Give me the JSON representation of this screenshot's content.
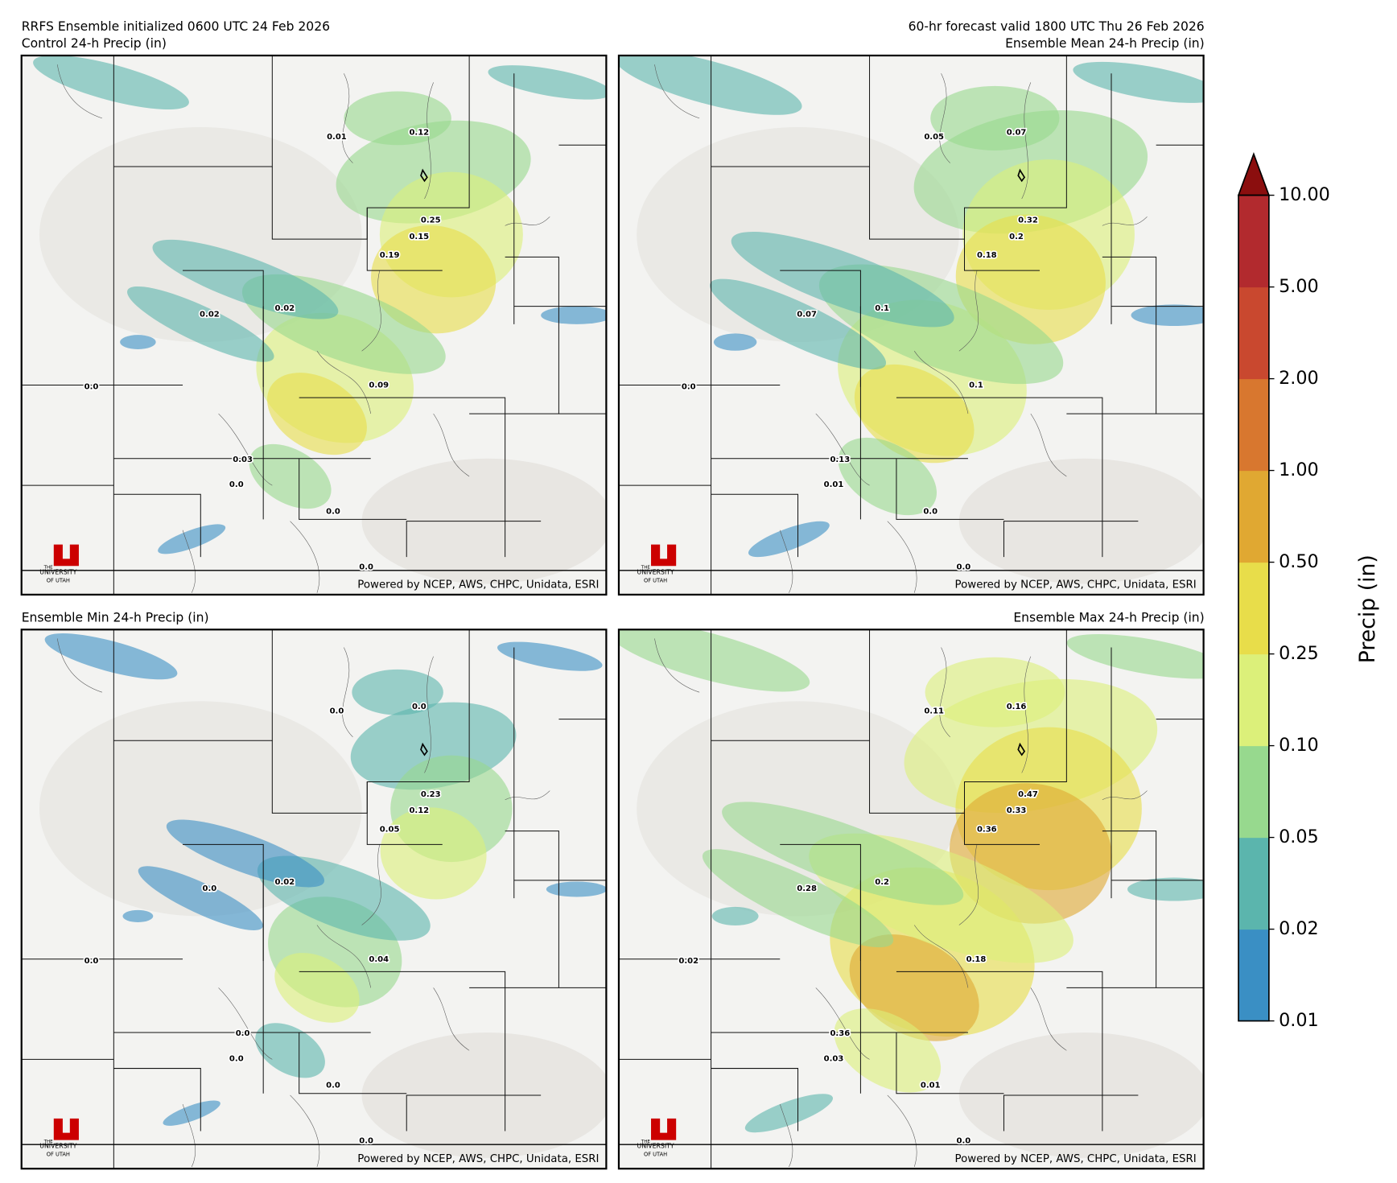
{
  "header": {
    "left_title": "RRFS Ensemble initialized 0600 UTC 24 Feb 2026",
    "right_title": "60-hr forecast valid 1800 UTC Thu 26 Feb 2026"
  },
  "panels": [
    {
      "title": "Control 24-h Precip (in)",
      "labels": [
        "0.01",
        "0.12",
        "0.25",
        "0.15",
        "0.19",
        "0.02",
        "0.02",
        "0.0",
        "0.09",
        "0.03",
        "0.0",
        "0.0",
        "0.0"
      ]
    },
    {
      "title": "Ensemble Mean 24-h Precip (in)",
      "labels": [
        "0.05",
        "0.07",
        "0.32",
        "0.2",
        "0.18",
        "0.07",
        "0.1",
        "0.0",
        "0.1",
        "0.13",
        "0.01",
        "0.0",
        "0.0"
      ]
    },
    {
      "title": "Ensemble Min 24-h Precip (in)",
      "labels": [
        "0.0",
        "0.0",
        "0.23",
        "0.12",
        "0.05",
        "0.0",
        "0.02",
        "0.0",
        "0.04",
        "0.0",
        "0.0",
        "0.0",
        "0.0"
      ]
    },
    {
      "title": "Ensemble Max 24-h Precip (in)",
      "labels": [
        "0.11",
        "0.16",
        "0.47",
        "0.33",
        "0.36",
        "0.28",
        "0.2",
        "0.02",
        "0.18",
        "0.36",
        "0.03",
        "0.01",
        "0.0"
      ]
    }
  ],
  "credit": "Powered by NCEP, AWS, CHPC, Unidata, ESRI",
  "logo": {
    "the": "THE",
    "line1": "UNIVERSITY",
    "line2": "OF UTAH"
  },
  "colorbar": {
    "label": "Precip (in)",
    "ticks": [
      "0.01",
      "0.02",
      "0.05",
      "0.10",
      "0.25",
      "0.50",
      "1.00",
      "2.00",
      "5.00",
      "10.00"
    ],
    "colors": [
      "#3a8fc4",
      "#5bb5ad",
      "#97d98e",
      "#dcf07a",
      "#e8dd4a",
      "#e0a832",
      "#d8772f",
      "#c9482f",
      "#b22a2e"
    ],
    "extend_color": "#8b0e0e"
  }
}
